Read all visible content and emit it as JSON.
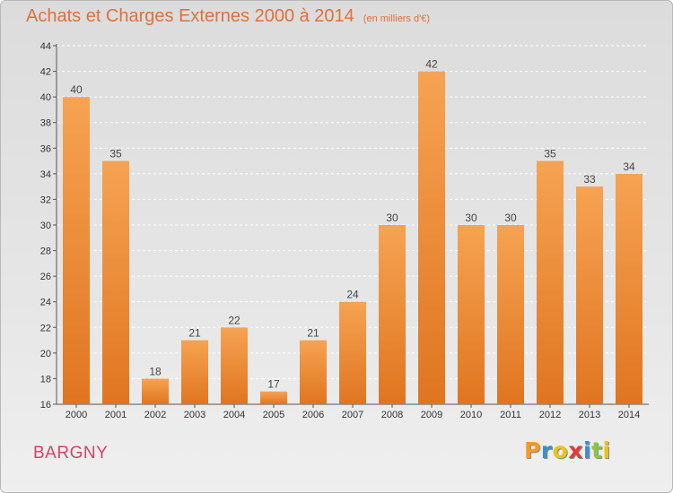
{
  "header": {
    "title": "Achats et Charges Externes 2000 à 2014",
    "subtitle": "(en milliers d'€)"
  },
  "footer": {
    "commune": "BARGNY",
    "logo_text": "Proxiti"
  },
  "colors": {
    "title": "#e0703a",
    "bar_top": "#f6a352",
    "bar_bottom": "#e07520",
    "commune": "#d0446a",
    "logo_letters": [
      "#f39a2a",
      "#3a8fd0",
      "#e8c41c",
      "#e03a3a",
      "#3a8fd0",
      "#8cc63e",
      "#e8c41c"
    ]
  },
  "chart_data": {
    "type": "bar",
    "title": "Achats et Charges Externes 2000 à 2014",
    "subtitle": "(en milliers d'€)",
    "categories": [
      "2000",
      "2001",
      "2002",
      "2003",
      "2004",
      "2005",
      "2006",
      "2007",
      "2008",
      "2009",
      "2010",
      "2011",
      "2012",
      "2013",
      "2014"
    ],
    "values": [
      40,
      35,
      18,
      21,
      22,
      17,
      21,
      24,
      30,
      42,
      30,
      30,
      35,
      33,
      34
    ],
    "xlabel": "",
    "ylabel": "",
    "ylim": [
      16,
      44
    ],
    "yticks": [
      16,
      18,
      20,
      22,
      24,
      26,
      28,
      30,
      32,
      34,
      36,
      38,
      40,
      42,
      44
    ],
    "grid": "horizontal dashed",
    "data_labels": true
  }
}
